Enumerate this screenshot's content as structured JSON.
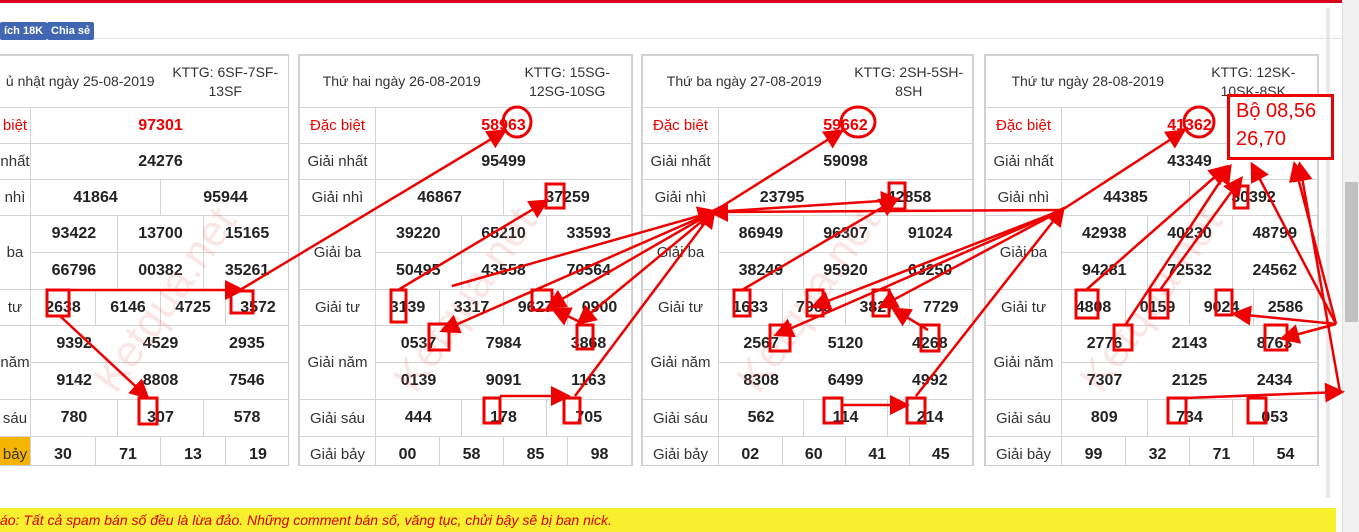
{
  "topbar": {
    "like_label": "ích 18K",
    "share_label": "Chia sẻ"
  },
  "colors": {
    "accent": "#d9001b",
    "special": "#e00000",
    "annotation": "#e00000"
  },
  "labels": {
    "special": "Đặc biệt",
    "first": "Giải nhất",
    "second": "Giải nhì",
    "third": "Giải ba",
    "fourth": "Giải tư",
    "fifth": "Giải năm",
    "sixth": "Giải sáu",
    "seventh": "Giải bảy"
  },
  "partial_labels": {
    "special": "biệt",
    "first": "nhất",
    "second": "nhì",
    "third": "ba",
    "fourth": "tư",
    "fifth": "năm",
    "sixth": "sáu",
    "seventh": "bảy"
  },
  "watermark": "Ketqua.net",
  "cards": [
    {
      "date": "ủ nhật ngày 25-08-2019",
      "kttg": "KTTG: 6SF-7SF-13SF",
      "special": "97301",
      "first": "24276",
      "second": [
        "41864",
        "95944"
      ],
      "third": [
        "93422",
        "13700",
        "15165",
        "66796",
        "00382",
        "35261"
      ],
      "fourth": [
        "2638",
        "6146",
        "4725",
        "3572"
      ],
      "fifth": [
        "9392",
        "4529",
        "2935",
        "9142",
        "8808",
        "7546"
      ],
      "sixth": [
        "780",
        "307",
        "578"
      ],
      "seventh": [
        "30",
        "71",
        "13",
        "19"
      ]
    },
    {
      "date": "Thứ hai ngày 26-08-2019",
      "kttg": "KTTG: 15SG-12SG-10SG",
      "special": "58963",
      "first": "95499",
      "second": [
        "46867",
        "37259"
      ],
      "third": [
        "39220",
        "65210",
        "33593",
        "50495",
        "43558",
        "70564"
      ],
      "fourth": [
        "3139",
        "3317",
        "9627",
        "0900"
      ],
      "fifth": [
        "0537",
        "7984",
        "3868",
        "0139",
        "9091",
        "1163"
      ],
      "sixth": [
        "444",
        "178",
        "705"
      ],
      "seventh": [
        "00",
        "58",
        "85",
        "98"
      ]
    },
    {
      "date": "Thứ ba ngày 27-08-2019",
      "kttg": "KTTG: 2SH-5SH-8SH",
      "special": "59662",
      "first": "59098",
      "second": [
        "23795",
        "42858"
      ],
      "third": [
        "86949",
        "96307",
        "91024",
        "38249",
        "95920",
        "63250"
      ],
      "fourth": [
        "1633",
        "7966",
        "3827",
        "7729"
      ],
      "fifth": [
        "2567",
        "5120",
        "4268",
        "8308",
        "6499",
        "4992"
      ],
      "sixth": [
        "562",
        "114",
        "214"
      ],
      "seventh": [
        "02",
        "60",
        "41",
        "45"
      ]
    },
    {
      "date": "Thứ tư ngày 28-08-2019",
      "kttg": "KTTG: 12SK-10SK-8SK",
      "special": "41362",
      "first": "43349",
      "second": [
        "44385",
        "30392"
      ],
      "third": [
        "42938",
        "40230",
        "48799",
        "94281",
        "72532",
        "24562"
      ],
      "fourth": [
        "4808",
        "0159",
        "9024",
        "2586"
      ],
      "fifth": [
        "2776",
        "2143",
        "8763",
        "7307",
        "2125",
        "2434"
      ],
      "sixth": [
        "809",
        "734",
        "053"
      ],
      "seventh": [
        "99",
        "32",
        "71",
        "54"
      ]
    }
  ],
  "annotation": {
    "line1": "Bộ 08,56",
    "line2": "26,70"
  },
  "notice": "áo: Tất cả spam bán số đều là lừa đảo. Những comment bán số, văng tục, chửi bậy sẽ bị ban nick."
}
